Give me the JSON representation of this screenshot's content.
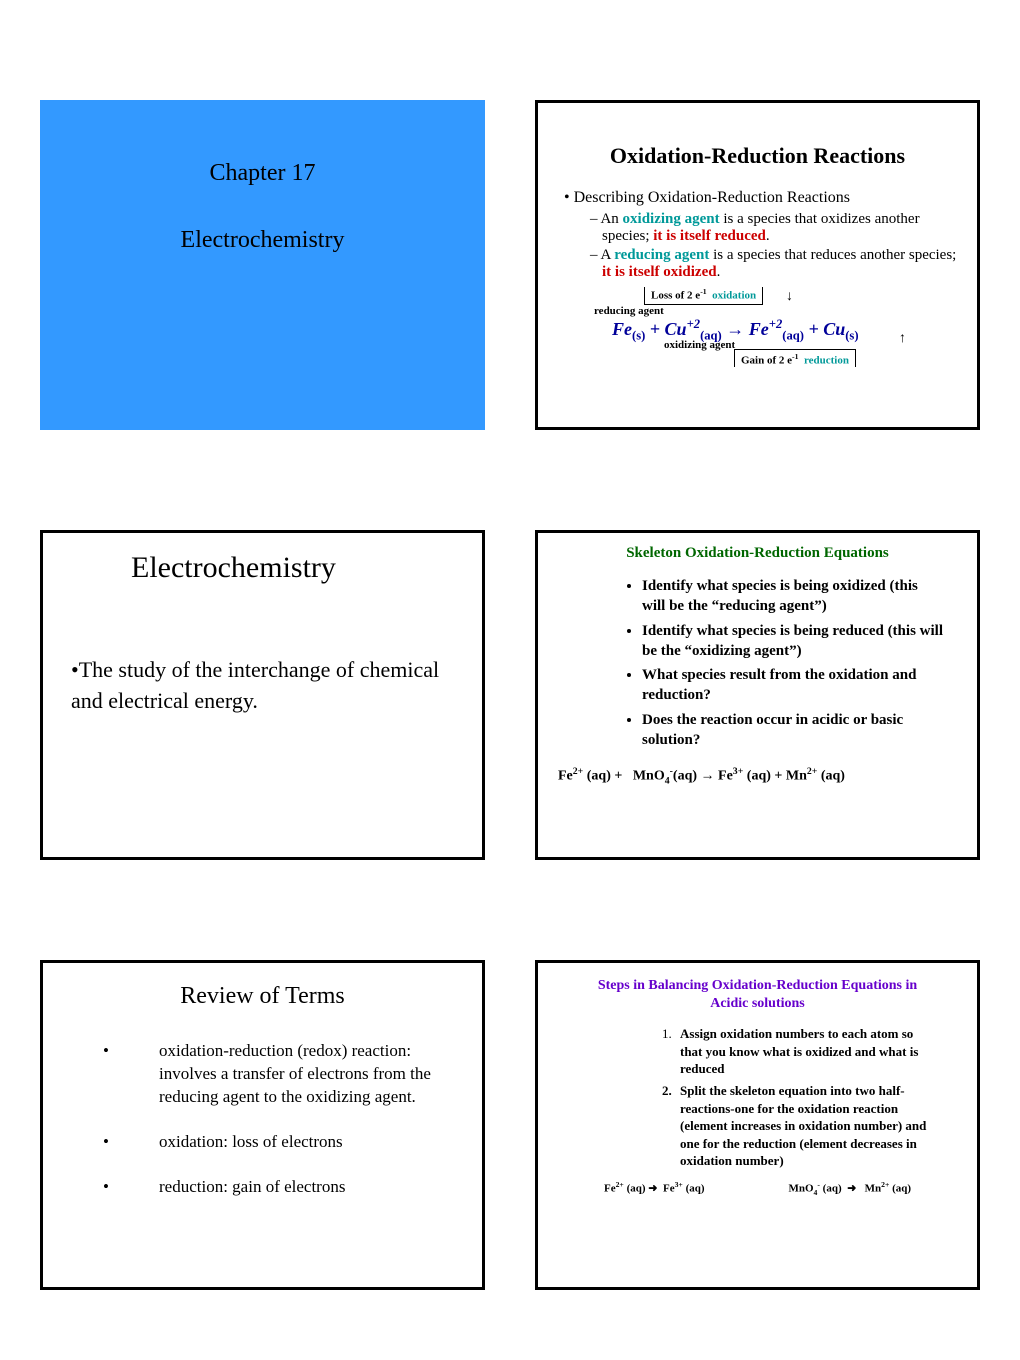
{
  "colors": {
    "blue_bg": "#3399ff",
    "teal": "#009999",
    "red": "#cc0000",
    "navy": "#000099",
    "green": "#006600",
    "purple": "#6600cc"
  },
  "slide1": {
    "chapter": "Chapter 17",
    "title": "Electrochemistry"
  },
  "slide2": {
    "title": "Oxidation-Reduction Reactions",
    "heading": "Describing Oxidation-Reduction Reactions",
    "ox_pre": "An ",
    "ox_term": "oxidizing agent",
    "ox_mid": " is a species that oxidizes another species; ",
    "ox_end": "it is itself reduced",
    "red_pre": "A ",
    "red_term": "reducing agent",
    "red_mid": " is a species that reduces another species; ",
    "red_end": "it is itself oxidized",
    "loss_label_a": "Loss of 2 e",
    "loss_label_b": "oxidation",
    "reducing_agent": "reducing agent",
    "oxidizing_agent": "oxidizing agent",
    "gain_label_a": "Gain of 2 e",
    "gain_label_b": "reduction"
  },
  "slide3": {
    "title": "Electrochemistry",
    "body": "The study of the interchange of chemical and electrical energy."
  },
  "slide4": {
    "title": "Skeleton Oxidation-Reduction Equations",
    "items": [
      "Identify what species is being oxidized (this will be the “reducing agent”)",
      "Identify what species is being reduced (this will be the “oxidizing agent”)",
      "What species result from the oxidation and reduction?",
      "Does the reaction occur in acidic or basic solution?"
    ]
  },
  "slide5": {
    "title": "Review of Terms",
    "items": [
      "oxidation-reduction (redox) reaction:  involves a transfer of electrons from the reducing agent to the oxidizing agent.",
      "oxidation:  loss of electrons",
      "reduction:  gain of electrons"
    ]
  },
  "slide6": {
    "title": "Steps in Balancing Oxidation-Reduction Equations in Acidic solutions",
    "step1": "Assign oxidation numbers to each atom so that you know what is oxidized and what is reduced",
    "step2": "Split the skeleton equation into two half-reactions-one for the oxidation reaction (element increases in oxidation number) and one for the reduction (element decreases in oxidation number)"
  }
}
